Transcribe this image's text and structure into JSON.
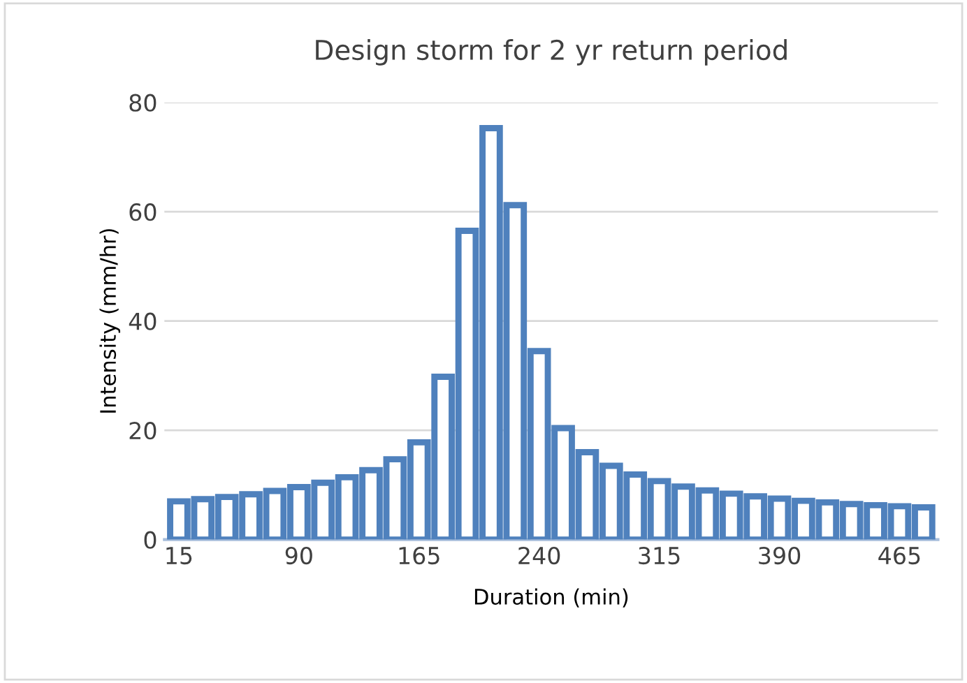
{
  "chart_data": {
    "type": "bar",
    "title": "Design storm for 2 yr return period",
    "xlabel": "Duration (min)",
    "ylabel": "Intensity (mm/hr)",
    "categories": [
      "15",
      null,
      null,
      null,
      null,
      "90",
      null,
      null,
      null,
      null,
      "165",
      null,
      null,
      null,
      null,
      "240",
      null,
      null,
      null,
      null,
      "315",
      null,
      null,
      null,
      null,
      "390",
      null,
      null,
      null,
      null,
      "465",
      null
    ],
    "series": [
      {
        "color": "#4f81bd",
        "values": [
          7,
          7.4,
          7.8,
          8.3,
          8.9,
          9.6,
          10.4,
          11.4,
          12.7,
          14.7,
          17.8,
          29.8,
          56.5,
          75.3,
          61.2,
          34.5,
          20.4,
          16,
          13.5,
          11.9,
          10.7,
          9.7,
          9,
          8.4,
          7.9,
          7.5,
          7.1,
          6.8,
          6.5,
          6.3,
          6.1,
          5.9
        ]
      }
    ],
    "ylim": [
      0,
      80
    ],
    "yticks": [
      0,
      20,
      40,
      60,
      80
    ],
    "grid": "y"
  }
}
